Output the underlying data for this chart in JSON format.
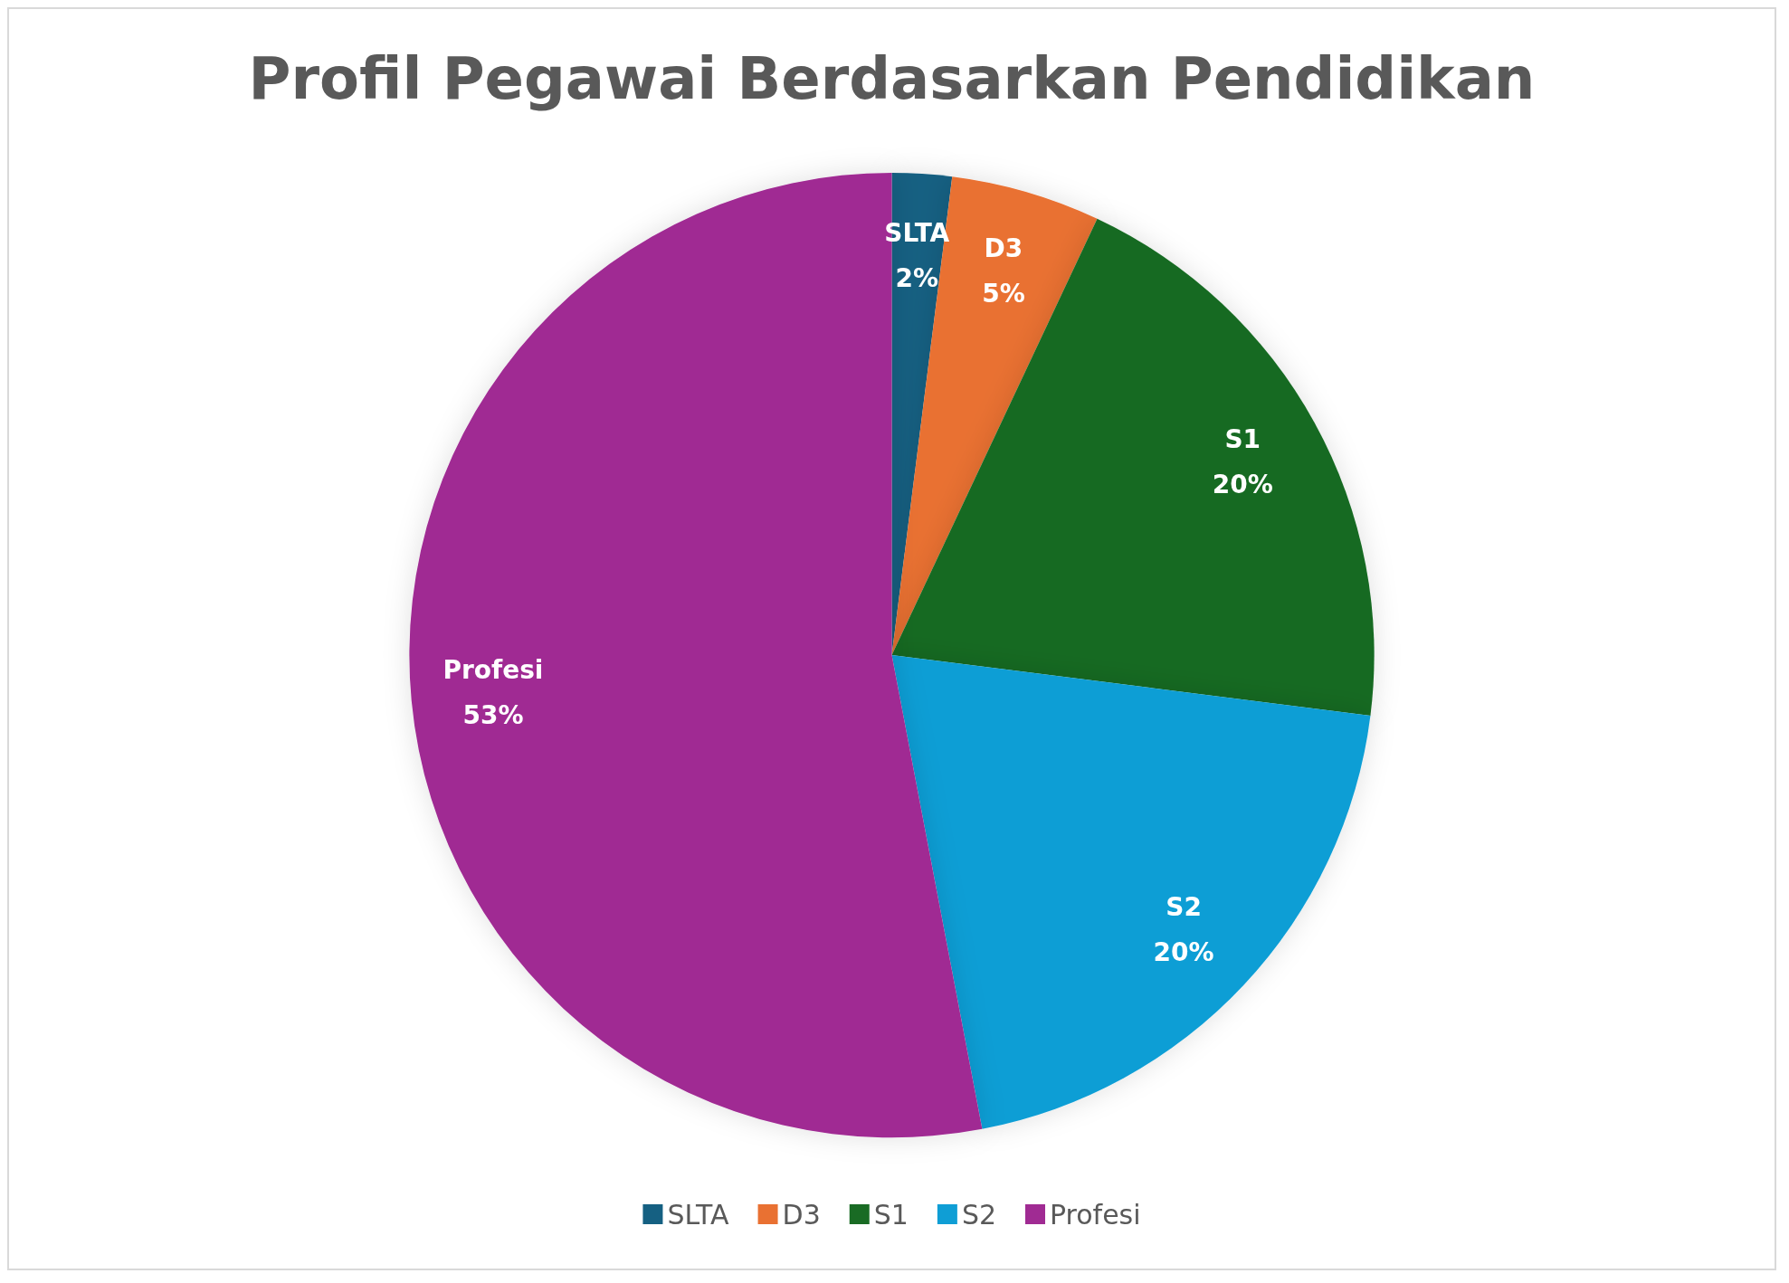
{
  "chart_data": {
    "type": "pie",
    "title": "Profil Pegawai Berdasarkan Pendidikan",
    "categories": [
      "SLTA",
      "D3",
      "S1",
      "S2",
      "Profesi"
    ],
    "values": [
      2,
      5,
      20,
      20,
      53
    ],
    "colors": [
      "#156082",
      "#e97132",
      "#196b24",
      "#0f9ed5",
      "#a02b93"
    ],
    "value_labels": [
      "2%",
      "5%",
      "20%",
      "20%",
      "53%"
    ],
    "legend": "bottom"
  }
}
